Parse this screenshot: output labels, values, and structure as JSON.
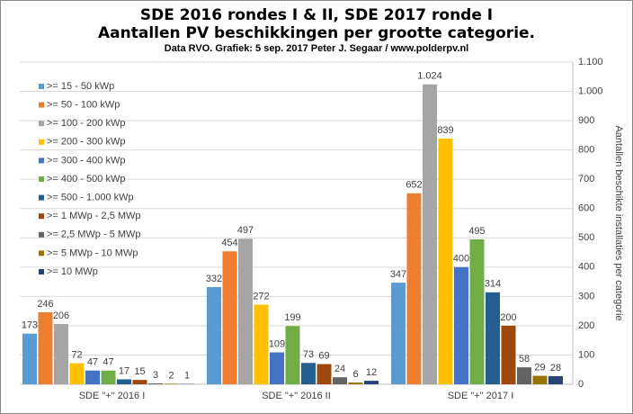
{
  "chart_data": {
    "type": "bar",
    "title": [
      "SDE 2016 rondes I & II, SDE 2017 ronde I",
      "Aantallen  PV beschikkingen  per grootte categorie."
    ],
    "subtitle": "Data RVO. Grafiek: 5 sep. 2017 Peter J. Segaar / www.polderpv.nl",
    "y_axis_label": "Aantallen beschikte installaties per categorie",
    "categories": [
      "SDE \"+\" 2016 I",
      "SDE \"+\" 2016 II",
      "SDE \"+\" 2017 I"
    ],
    "series": [
      {
        "name": ">= 15 - 50 kWp",
        "color": "#5b9bd5",
        "values": [
          173,
          332,
          347
        ]
      },
      {
        "name": ">= 50 - 100 kWp",
        "color": "#ed7d31",
        "values": [
          246,
          454,
          652
        ]
      },
      {
        "name": ">= 100 - 200 kWp",
        "color": "#a5a5a5",
        "values": [
          206,
          497,
          1024
        ],
        "value_labels": [
          "206",
          "497",
          "1.024"
        ]
      },
      {
        "name": ">= 200 - 300 kWp",
        "color": "#ffc000",
        "values": [
          72,
          272,
          839
        ]
      },
      {
        "name": ">= 300 - 400 kWp",
        "color": "#4472c4",
        "values": [
          47,
          109,
          400
        ]
      },
      {
        "name": ">= 400 - 500 kWp",
        "color": "#70ad47",
        "values": [
          47,
          199,
          495
        ]
      },
      {
        "name": ">= 500 - 1.000 kWp",
        "color": "#255e91",
        "values": [
          17,
          73,
          314
        ]
      },
      {
        "name": ">= 1 MWp - 2,5 MWp",
        "color": "#9e480e",
        "values": [
          15,
          69,
          200
        ]
      },
      {
        "name": ">= 2,5 MWp - 5 MWp",
        "color": "#636363",
        "values": [
          3,
          24,
          58
        ]
      },
      {
        "name": ">= 5 MWp - 10 MWp",
        "color": "#997300",
        "values": [
          2,
          6,
          29
        ]
      },
      {
        "name": ">= 10 MWp",
        "color": "#264478",
        "values": [
          1,
          12,
          28
        ]
      }
    ],
    "ylim": [
      0,
      1100
    ],
    "yticks": [
      0,
      100,
      200,
      300,
      400,
      500,
      600,
      700,
      800,
      900,
      {
        "value": 1000,
        "label": "1.000"
      },
      {
        "value": 1100,
        "label": "1.100"
      }
    ],
    "grid": true,
    "y_axis_side": "right",
    "legend": "upper left"
  }
}
